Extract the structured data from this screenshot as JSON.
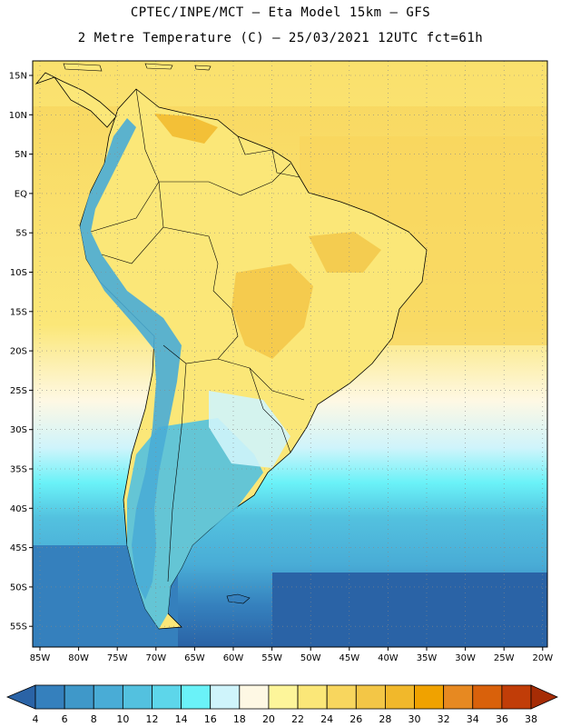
{
  "header": {
    "line1": "CPTEC/INPE/MCT –  Eta Model 15km – GFS",
    "line2": "2 Metre Temperature (C) – 25/03/2021 12UTC fct=61h"
  },
  "map": {
    "lat_labels": [
      "15N",
      "10N",
      "5N",
      "EQ",
      "5S",
      "10S",
      "15S",
      "20S",
      "25S",
      "30S",
      "35S",
      "40S",
      "45S",
      "50S",
      "55S"
    ],
    "lon_labels": [
      "85W",
      "80W",
      "75W",
      "70W",
      "65W",
      "60W",
      "55W",
      "50W",
      "45W",
      "40W",
      "35W",
      "30W",
      "25W",
      "20W"
    ]
  },
  "colorbar": {
    "ticks": [
      "4",
      "6",
      "8",
      "10",
      "12",
      "14",
      "16",
      "18",
      "20",
      "22",
      "24",
      "26",
      "28",
      "30",
      "32",
      "34",
      "36",
      "38"
    ],
    "colors": [
      "#2a63a6",
      "#3580bd",
      "#3f98c9",
      "#49acd6",
      "#53c1df",
      "#5dd6ea",
      "#6af2f8",
      "#cff4fb",
      "#fef8e4",
      "#fdf59a",
      "#fbe778",
      "#f8d65e",
      "#f3c646",
      "#f1b82b",
      "#f0a200",
      "#e78921",
      "#d9610b",
      "#c13d08",
      "#a62c05"
    ]
  }
}
